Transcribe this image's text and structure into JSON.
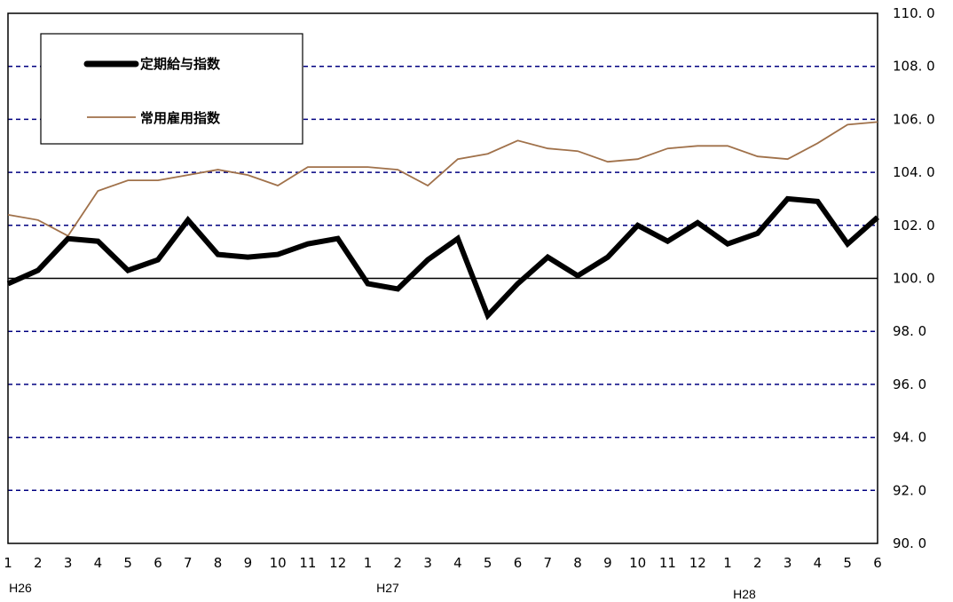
{
  "chart_data": {
    "type": "line",
    "x_ticks": [
      "1",
      "2",
      "3",
      "4",
      "5",
      "6",
      "7",
      "8",
      "9",
      "10",
      "11",
      "12",
      "1",
      "2",
      "3",
      "4",
      "5",
      "6",
      "7",
      "8",
      "9",
      "10",
      "11",
      "12",
      "1",
      "2",
      "3",
      "4",
      "5",
      "6"
    ],
    "year_labels": [
      "H26",
      "H27",
      "H28"
    ],
    "y_tick_labels": [
      "110. 0",
      "108. 0",
      "106. 0",
      "104. 0",
      "102. 0",
      "100. 0",
      "98. 0",
      "96. 0",
      "94. 0",
      "92. 0",
      "90. 0"
    ],
    "ylim": [
      90,
      110
    ],
    "y_ticks": [
      110,
      108,
      106,
      104,
      102,
      100,
      98,
      96,
      94,
      92,
      90
    ],
    "reference_line": 100,
    "grid": "horizontal dashed",
    "legend_position": "top-left",
    "series": [
      {
        "name": "定期給与指数",
        "color": "#000000",
        "values": [
          99.8,
          100.3,
          101.5,
          101.4,
          100.3,
          100.7,
          102.2,
          100.9,
          100.8,
          100.9,
          101.3,
          101.5,
          99.8,
          99.6,
          100.7,
          101.5,
          98.6,
          99.8,
          100.8,
          100.1,
          100.8,
          102.0,
          101.4,
          102.1,
          101.3,
          101.7,
          103.0,
          102.9,
          101.3,
          102.3
        ]
      },
      {
        "name": "常用雇用指数",
        "color": "#A0714A",
        "values": [
          102.4,
          102.2,
          101.6,
          103.3,
          103.7,
          103.7,
          103.9,
          104.1,
          103.9,
          103.5,
          104.2,
          104.2,
          104.2,
          104.1,
          103.5,
          104.5,
          104.7,
          105.2,
          104.9,
          104.8,
          104.4,
          104.5,
          104.9,
          105.0,
          105.0,
          104.6,
          104.5,
          105.1,
          105.8,
          105.9
        ]
      }
    ]
  }
}
